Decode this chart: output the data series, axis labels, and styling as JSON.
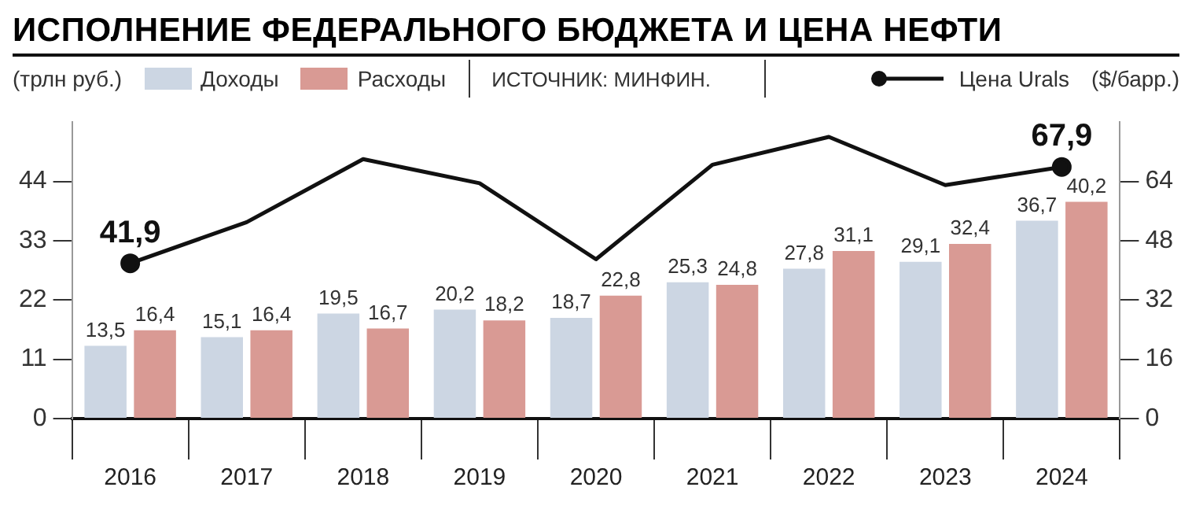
{
  "chart_data": {
    "type": "bar",
    "title": "ИСПОЛНЕНИЕ ФЕДЕРАЛЬНОГО БЮДЖЕТА И ЦЕНА НЕФТИ",
    "ylabel": "(трлн руб.)",
    "y2label": "($/барр.)",
    "annotations": [
      "ИСТОЧНИК: МИНФИН."
    ],
    "categories": [
      "2016",
      "2017",
      "2018",
      "2019",
      "2020",
      "2021",
      "2022",
      "2023",
      "2024"
    ],
    "series": [
      {
        "name": "Доходы",
        "color": "#ccd6e3",
        "values": [
          13.5,
          15.1,
          19.5,
          20.2,
          18.7,
          25.3,
          27.8,
          29.1,
          36.7
        ],
        "value_labels": [
          "13,5",
          "15,1",
          "19,5",
          "20,2",
          "18,7",
          "25,3",
          "27,8",
          "29,1",
          "36,7"
        ]
      },
      {
        "name": "Расходы",
        "color": "#d99a94",
        "values": [
          16.4,
          16.4,
          16.7,
          18.2,
          22.8,
          24.8,
          31.1,
          32.4,
          40.2
        ],
        "value_labels": [
          "16,4",
          "16,4",
          "16,7",
          "18,2",
          "22,8",
          "24,8",
          "31,1",
          "32,4",
          "40,2"
        ]
      },
      {
        "name": "Цена Urals",
        "type": "line",
        "axis": "y2",
        "color": "#111111",
        "values": [
          41.9,
          53,
          70,
          63.5,
          43,
          68.5,
          76,
          63,
          67.9
        ],
        "value_labels": [
          "41,9",
          null,
          null,
          null,
          null,
          null,
          null,
          null,
          "67,9"
        ]
      }
    ],
    "ylim": [
      0,
      55
    ],
    "yticks": [
      0,
      11,
      22,
      33,
      44
    ],
    "y2lim": [
      0,
      80
    ],
    "y2ticks": [
      0,
      16,
      32,
      48,
      64
    ],
    "grid": false,
    "legend": "top",
    "line_style": "solid"
  }
}
